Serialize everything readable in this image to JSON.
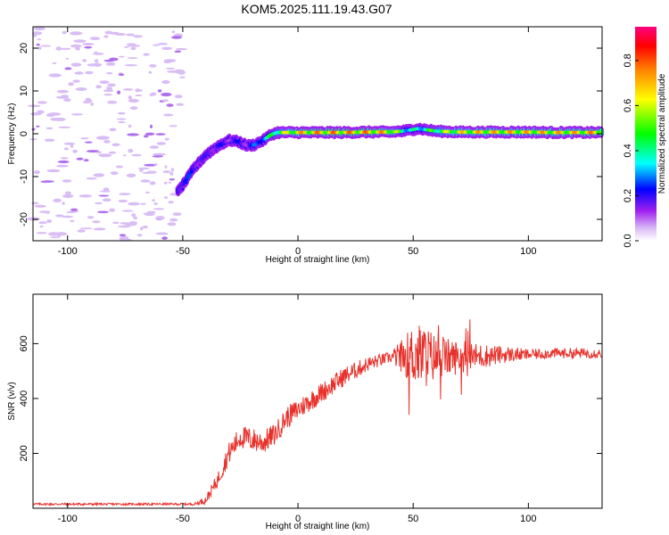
{
  "title": "KOM5.2025.111.19.43.G07",
  "chart_data": [
    {
      "type": "heatmap",
      "xlabel": "Height of straight line (km)",
      "ylabel": "Frequency (Hz)",
      "xlim": [
        -115,
        132
      ],
      "ylim": [
        -25,
        25
      ],
      "x_ticks": [
        -100,
        -50,
        0,
        50,
        100
      ],
      "y_ticks": [
        -20,
        -10,
        0,
        10,
        20
      ],
      "colorbar": {
        "label": "Normalized spectral amplitude",
        "range": [
          0,
          0.95
        ],
        "ticks": [
          "0.0",
          "0.2",
          "0.4",
          "0.6",
          "0.8"
        ],
        "colors": [
          "#ffffff",
          "#d8b8f5",
          "#a020f0",
          "#0000ff",
          "#00ffff",
          "#00ff00",
          "#ffff00",
          "#ff8000",
          "#ff0000",
          "#ff0080"
        ]
      },
      "ridge": {
        "x": [
          -52,
          -50,
          -45,
          -40,
          -35,
          -30,
          -26,
          -22,
          -19,
          -15,
          -12,
          -9,
          -5,
          0,
          10,
          20,
          30,
          40,
          45,
          48,
          52,
          55,
          60,
          70,
          80,
          90,
          100,
          110,
          120,
          132
        ],
        "y": [
          -13.5,
          -12.0,
          -8.0,
          -5.0,
          -3.0,
          -1.5,
          -1.8,
          -2.8,
          -2.6,
          -1.5,
          -0.3,
          0.3,
          0.3,
          0.3,
          0.3,
          0.3,
          0.4,
          0.4,
          0.6,
          0.8,
          1.2,
          1.0,
          0.6,
          0.4,
          0.4,
          0.4,
          0.4,
          0.3,
          0.3,
          0.3
        ],
        "amplitude": [
          0.25,
          0.3,
          0.25,
          0.2,
          0.25,
          0.2,
          0.25,
          0.2,
          0.3,
          0.4,
          0.5,
          0.6,
          0.7,
          0.8,
          0.85,
          0.85,
          0.85,
          0.8,
          0.55,
          0.45,
          0.45,
          0.5,
          0.6,
          0.75,
          0.8,
          0.8,
          0.8,
          0.8,
          0.8,
          0.85
        ]
      },
      "noise_region": {
        "xlim": [
          -115,
          -50
        ],
        "amplitude": 0.05
      }
    },
    {
      "type": "line",
      "xlabel": "Height of straight line (km)",
      "ylabel": "SNR (v/v)",
      "xlim": [
        -115,
        132
      ],
      "ylim": [
        0,
        780
      ],
      "x_ticks": [
        -100,
        -50,
        0,
        50,
        100
      ],
      "y_ticks": [
        200,
        400,
        600
      ],
      "color": "#e8302a",
      "trend": {
        "x": [
          -115,
          -45,
          -40,
          -35,
          -30,
          -25,
          -20,
          -15,
          -10,
          -5,
          0,
          10,
          20,
          30,
          40,
          45,
          50,
          55,
          60,
          70,
          80,
          90,
          100,
          110,
          120,
          132
        ],
        "y": [
          15,
          15,
          30,
          100,
          200,
          260,
          250,
          240,
          270,
          330,
          360,
          420,
          480,
          525,
          550,
          555,
          560,
          555,
          550,
          550,
          555,
          560,
          560,
          565,
          565,
          565
        ]
      },
      "noise_amplitude": {
        "x": [
          -115,
          -45,
          -40,
          -30,
          -20,
          -10,
          0,
          20,
          40,
          45,
          50,
          55,
          60,
          70,
          80,
          90,
          100,
          132
        ],
        "y": [
          4,
          4,
          15,
          40,
          45,
          40,
          40,
          35,
          20,
          60,
          110,
          120,
          80,
          60,
          45,
          30,
          20,
          18
        ]
      }
    }
  ]
}
